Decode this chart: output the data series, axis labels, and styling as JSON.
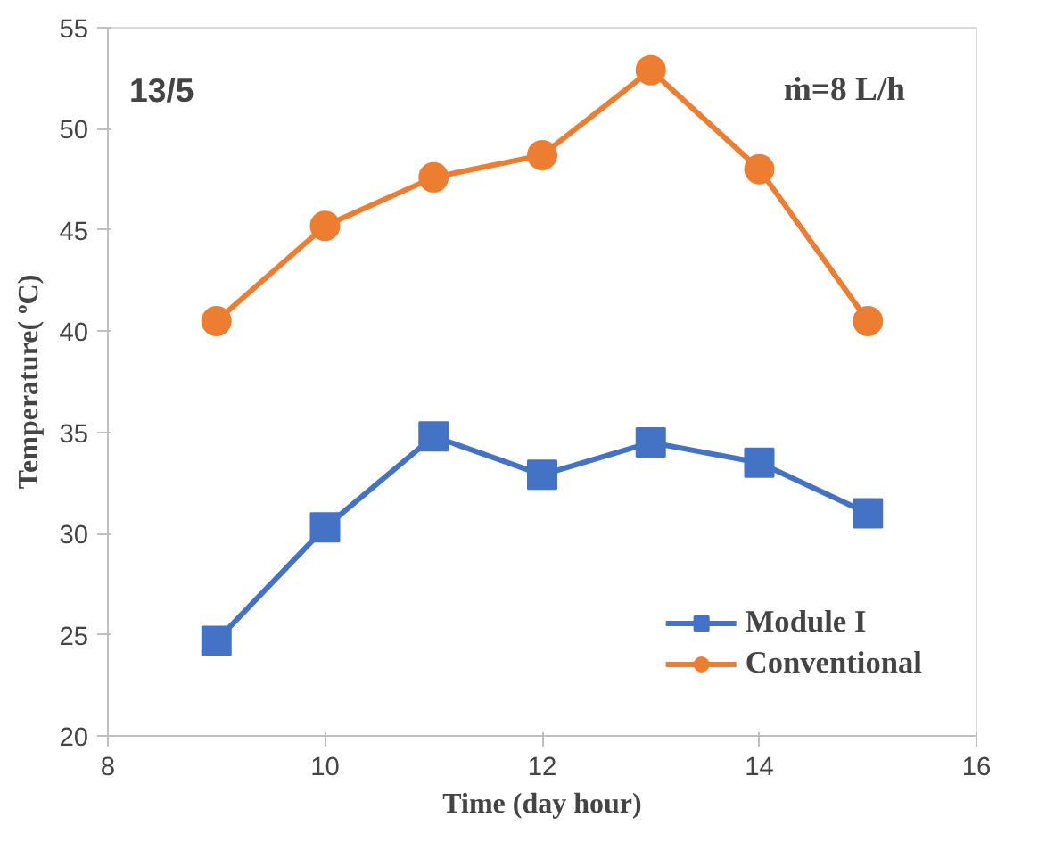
{
  "chart_data": {
    "type": "line",
    "xlabel": "Time (day hour)",
    "ylabel": "Temperature( ºC)",
    "x": [
      9,
      10,
      11,
      12,
      13,
      14,
      15
    ],
    "series": [
      {
        "name": "Module I",
        "color": "#4472c4",
        "marker": "square",
        "values": [
          24.7,
          30.3,
          34.8,
          32.9,
          34.5,
          33.5,
          31.0
        ]
      },
      {
        "name": "Conventional",
        "color": "#ed7d31",
        "marker": "circle",
        "values": [
          40.5,
          45.2,
          47.6,
          48.7,
          52.9,
          48.0,
          40.5
        ]
      }
    ],
    "xlim": [
      8,
      16
    ],
    "xticks": [
      8,
      10,
      12,
      14,
      16
    ],
    "ylim": [
      20,
      55
    ],
    "yticks": [
      20,
      25,
      30,
      35,
      40,
      45,
      50,
      55
    ],
    "grid": false,
    "legend": "bottom right",
    "line_style": "solid",
    "annotations": [
      "13/5",
      "ṁ=8 L/h"
    ]
  }
}
